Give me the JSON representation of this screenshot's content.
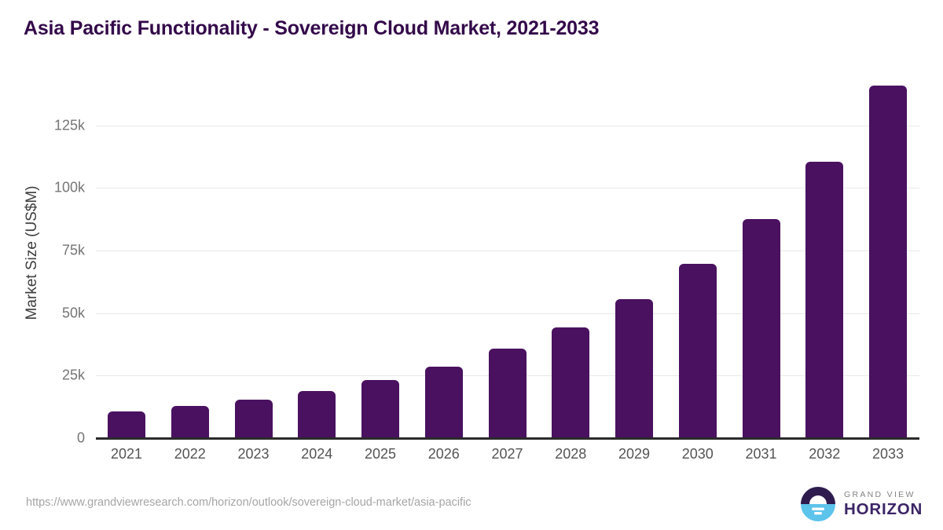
{
  "title": "Asia Pacific Functionality - Sovereign Cloud Market, 2021-2033",
  "chart_data": {
    "type": "bar",
    "title": "Asia Pacific Functionality - Sovereign Cloud Market, 2021-2033",
    "categories": [
      "2021",
      "2022",
      "2023",
      "2024",
      "2025",
      "2026",
      "2027",
      "2028",
      "2029",
      "2030",
      "2031",
      "2032",
      "2033"
    ],
    "values": [
      10800,
      12900,
      15500,
      18900,
      23300,
      28700,
      35700,
      44300,
      55400,
      69700,
      87500,
      110600,
      140900
    ],
    "xlabel": "",
    "ylabel": "Market Size (US$M)",
    "ylim": [
      0,
      145000
    ],
    "ytick_values": [
      0,
      25000,
      50000,
      75000,
      100000,
      125000
    ],
    "ytick_labels": [
      "0",
      "25k",
      "50k",
      "75k",
      "100k",
      "125k"
    ],
    "grid": "horizontal-gridlines-on",
    "legend": "none",
    "bar_color": "#4a1160"
  },
  "footer": {
    "source_url": "https://www.grandviewresearch.com/horizon/outlook/sovereign-cloud-market/asia-pacific"
  },
  "logo": {
    "brand_line1": "GRAND VIEW",
    "brand_line2": "HORIZON",
    "mark_top_color": "#2e1c4e",
    "mark_bottom_color": "#5cc3eb"
  },
  "colors": {
    "title": "#33094a",
    "bar": "#4a1160",
    "gridline": "#e9e9e9",
    "axis_line": "#2b2b2b",
    "x_tick_label": "#545454",
    "y_tick_label": "#757575",
    "url_text": "#a5a5a5",
    "background": "#ffffff"
  }
}
